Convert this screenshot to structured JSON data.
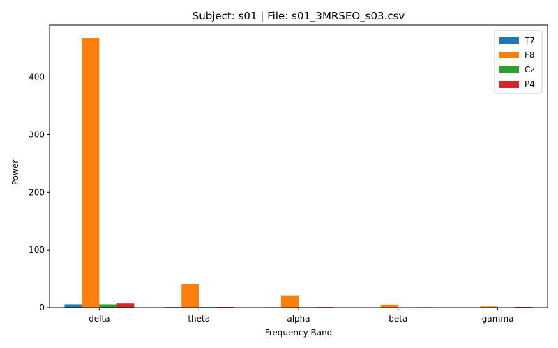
{
  "chart_data": {
    "type": "bar",
    "title": "Subject: s01 | File: s01_3MRSEO_s03.csv",
    "xlabel": "Frequency Band",
    "ylabel": "Power",
    "categories": [
      "delta",
      "theta",
      "alpha",
      "beta",
      "gamma"
    ],
    "ylim": [
      0,
      490
    ],
    "yticks": [
      0,
      100,
      200,
      300,
      400
    ],
    "grid": false,
    "legend_position": "top-right",
    "series": [
      {
        "name": "T7",
        "color": "#1f77b4",
        "values": [
          5.5,
          1.0,
          0.8,
          0.6,
          0.2
        ]
      },
      {
        "name": "F8",
        "color": "#ff7f0e",
        "values": [
          468,
          41,
          21,
          5,
          2
        ]
      },
      {
        "name": "Cz",
        "color": "#2ca02c",
        "values": [
          5.5,
          1.0,
          0.8,
          0.6,
          0.2
        ]
      },
      {
        "name": "P4",
        "color": "#d62728",
        "values": [
          7,
          1.2,
          1.0,
          0.8,
          1.2
        ]
      }
    ]
  }
}
